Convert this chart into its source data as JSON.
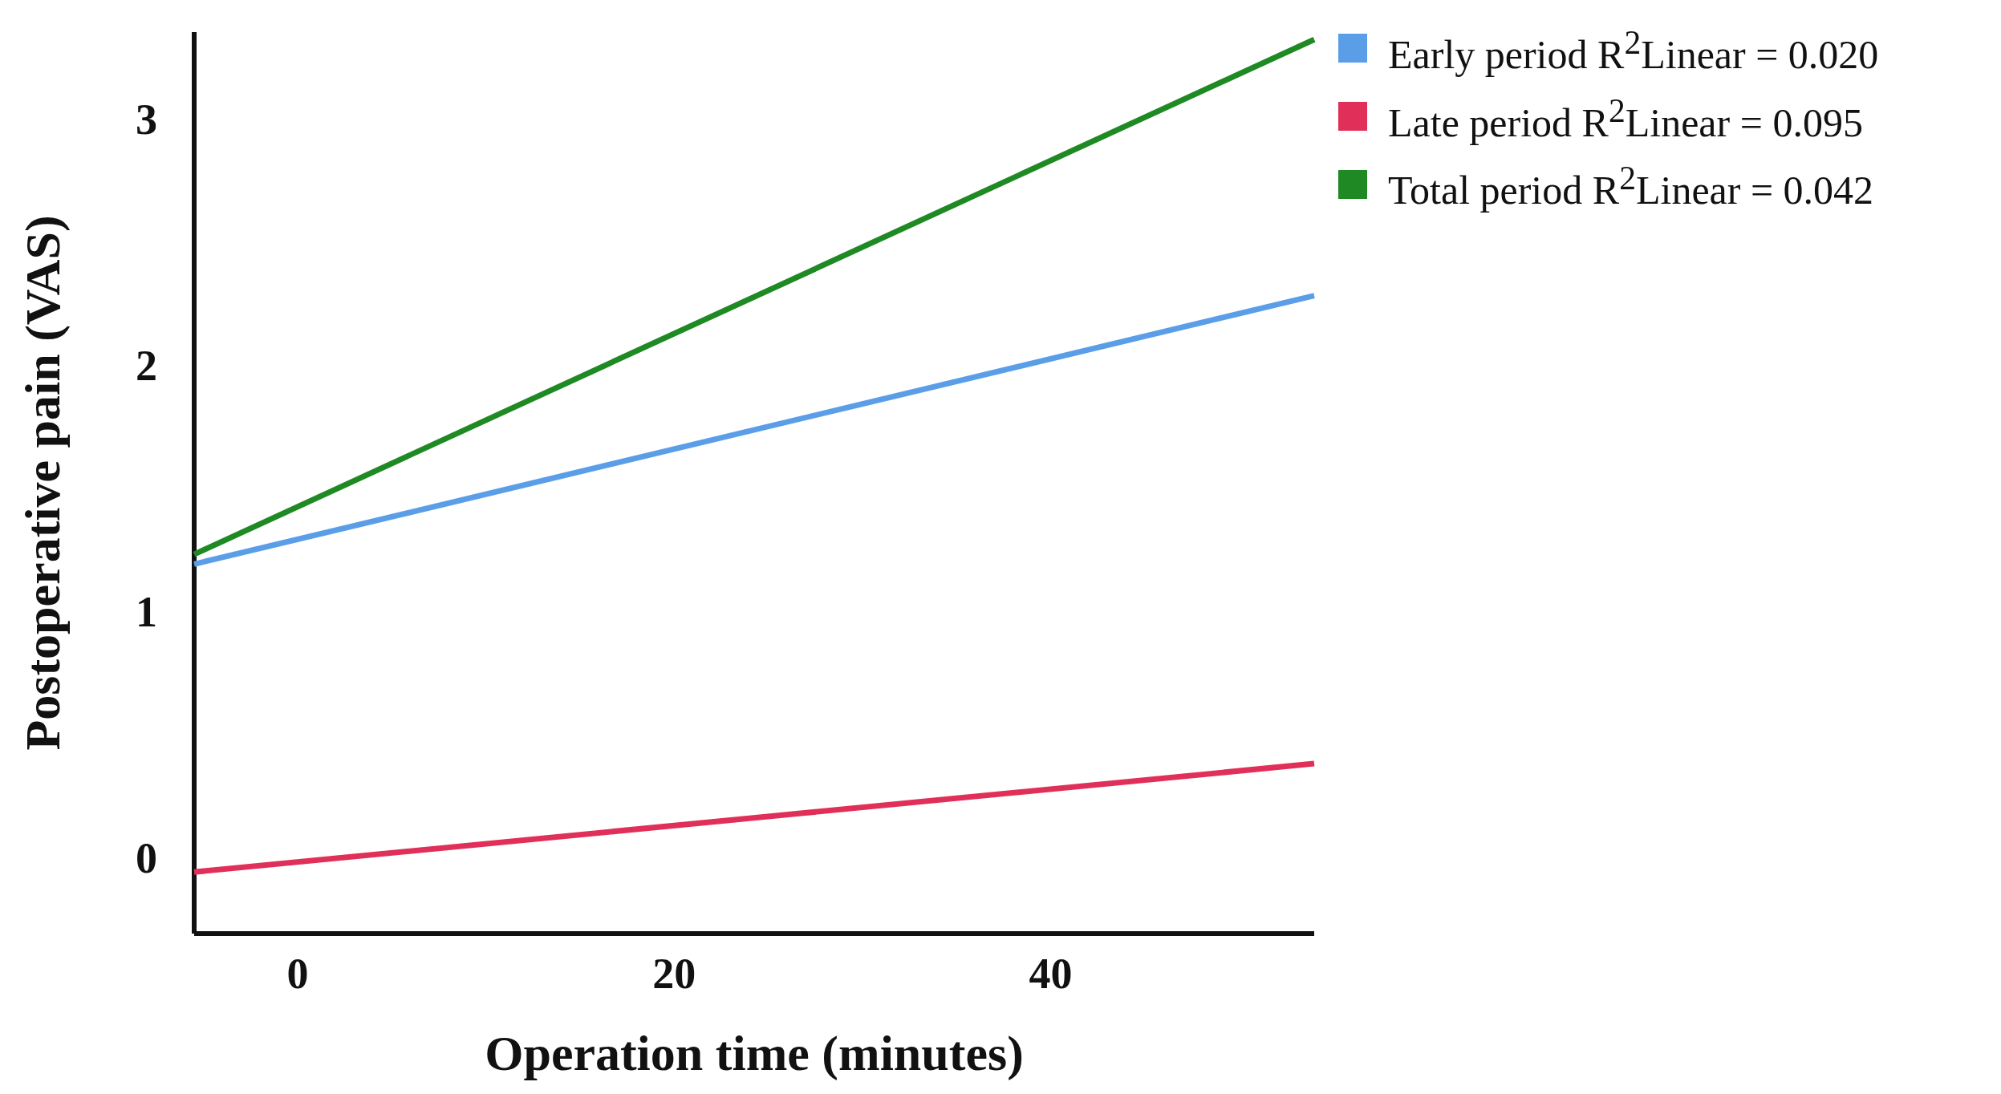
{
  "chart_data": {
    "type": "line",
    "xlabel": "Operation time (minutes)",
    "ylabel": "Postoperative pain (VAS)",
    "xlim": [
      -5.5,
      54
    ],
    "xticks": [
      0,
      20,
      40
    ],
    "ylim": [
      -0.31,
      3.35
    ],
    "yticks": [
      0,
      1,
      2,
      3
    ],
    "x": [
      -5.5,
      54
    ],
    "series": [
      {
        "name": "Early period R$^{2}$Linear = 0.020",
        "color": "#5b9ee8",
        "values": [
          1.19,
          2.28
        ]
      },
      {
        "name": "Late period R$^{2}$Linear = 0.095",
        "color": "#e0305a",
        "values": [
          -0.06,
          0.38
        ]
      },
      {
        "name": "Total period R$^{2}$Linear = 0.042",
        "color": "#1f8a24",
        "values": [
          1.23,
          3.32
        ]
      }
    ],
    "legend": "top right",
    "grid": false,
    "marker": "none",
    "line_style": "solid"
  }
}
